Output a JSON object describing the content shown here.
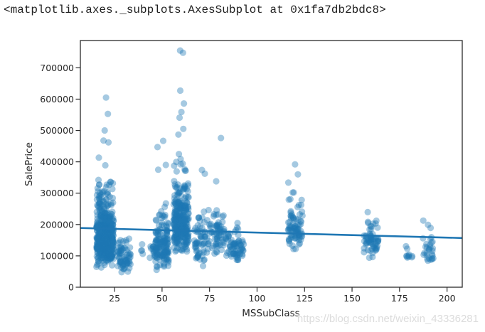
{
  "page": {
    "background": "#ffffff"
  },
  "header": {
    "repr_text": "<matplotlib.axes._subplots.AxesSubplot at 0x1fa7db2bdc8>"
  },
  "watermark": {
    "text": "https://blog.csdn.net/weixin_43336281",
    "color": "#dcdcdc"
  },
  "chart_data": {
    "type": "scatter",
    "title": "",
    "xlabel": "MSSubClass",
    "ylabel": "SalePrice",
    "grid": false,
    "legend": "none",
    "xlim": [
      7,
      208
    ],
    "ylim": [
      0,
      787000
    ],
    "x_tick_values": [
      25,
      50,
      75,
      100,
      125,
      150,
      175,
      200
    ],
    "x_tick_labels": [
      "25",
      "50",
      "75",
      "100",
      "125",
      "150",
      "175",
      "200"
    ],
    "y_tick_values": [
      0,
      100000,
      200000,
      300000,
      400000,
      500000,
      600000,
      700000
    ],
    "y_tick_labels": [
      "0",
      "100000",
      "200000",
      "300000",
      "400000",
      "500000",
      "600000",
      "700000"
    ],
    "colors": {
      "marker": "#1f77b4",
      "line": "#1f77b4",
      "spine": "#2b2b2b",
      "tick_text": "#262626"
    },
    "marker_opacity": 0.4,
    "marker_radius": 4.6,
    "line_width": 2.6,
    "regression_line": {
      "x1": 7,
      "y1": 189000,
      "x2": 208,
      "y2": 157000
    },
    "clusters": [
      {
        "x": 20,
        "n": 530,
        "median": 155000,
        "log_sigma": 0.34,
        "min": 35000,
        "max": 460000,
        "jitter": 4.5
      },
      {
        "x": 30,
        "n": 69,
        "median": 96000,
        "log_sigma": 0.3,
        "min": 34900,
        "max": 166000,
        "jitter": 3.5
      },
      {
        "x": 40,
        "n": 4,
        "median": 115000,
        "log_sigma": 0.3,
        "min": 80000,
        "max": 168000,
        "jitter": 1.5
      },
      {
        "x": 45,
        "n": 12,
        "median": 107000,
        "log_sigma": 0.18,
        "min": 76000,
        "max": 144000,
        "jitter": 1.5
      },
      {
        "x": 50,
        "n": 140,
        "median": 131000,
        "log_sigma": 0.34,
        "min": 40000,
        "max": 300000,
        "jitter": 3.5
      },
      {
        "x": 60,
        "n": 292,
        "median": 215000,
        "log_sigma": 0.28,
        "min": 112000,
        "max": 475000,
        "jitter": 4.0
      },
      {
        "x": 70,
        "n": 58,
        "median": 152000,
        "log_sigma": 0.33,
        "min": 62000,
        "max": 305000,
        "jitter": 3.0
      },
      {
        "x": 75,
        "n": 16,
        "median": 160000,
        "log_sigma": 0.28,
        "min": 107000,
        "max": 296000,
        "jitter": 1.5
      },
      {
        "x": 80,
        "n": 56,
        "median": 165000,
        "log_sigma": 0.24,
        "min": 100000,
        "max": 265000,
        "jitter": 3.0
      },
      {
        "x": 85,
        "n": 20,
        "median": 138000,
        "log_sigma": 0.18,
        "min": 90000,
        "max": 190000,
        "jitter": 1.8
      },
      {
        "x": 90,
        "n": 52,
        "median": 135000,
        "log_sigma": 0.24,
        "min": 82000,
        "max": 212000,
        "jitter": 3.0
      },
      {
        "x": 120,
        "n": 85,
        "median": 190000,
        "log_sigma": 0.24,
        "min": 97000,
        "max": 336000,
        "jitter": 4.0
      },
      {
        "x": 160,
        "n": 63,
        "median": 146000,
        "log_sigma": 0.24,
        "min": 88000,
        "max": 240000,
        "jitter": 3.8
      },
      {
        "x": 180,
        "n": 10,
        "median": 99000,
        "log_sigma": 0.18,
        "min": 75000,
        "max": 143000,
        "jitter": 2.0
      },
      {
        "x": 190,
        "n": 30,
        "median": 127000,
        "log_sigma": 0.3,
        "min": 83000,
        "max": 255000,
        "jitter": 3.0
      }
    ],
    "outlier_points": [
      [
        20.5,
        605000
      ],
      [
        21.5,
        553000
      ],
      [
        19.8,
        500000
      ],
      [
        19.2,
        468000
      ],
      [
        21.8,
        462000
      ],
      [
        47.6,
        447000
      ],
      [
        50.6,
        467000
      ],
      [
        48.0,
        375000
      ],
      [
        52.0,
        390000
      ],
      [
        59.5,
        755000
      ],
      [
        61.0,
        748000
      ],
      [
        59.6,
        627000
      ],
      [
        61.5,
        586000
      ],
      [
        60.2,
        559000
      ],
      [
        59.2,
        541000
      ],
      [
        61.2,
        505000
      ],
      [
        58.6,
        487000
      ],
      [
        71.0,
        374000
      ],
      [
        72.5,
        362000
      ],
      [
        81.0,
        476000
      ],
      [
        78.5,
        338000
      ],
      [
        120.0,
        392000
      ],
      [
        121.5,
        360000
      ]
    ]
  }
}
